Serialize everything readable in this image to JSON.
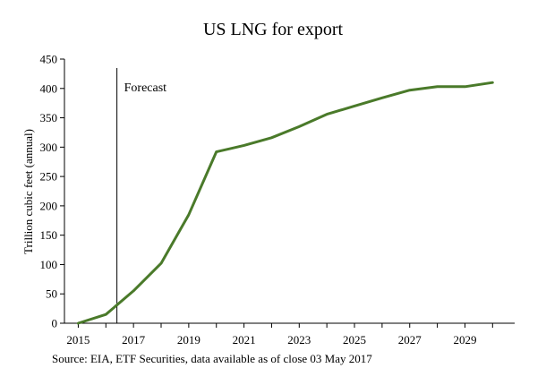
{
  "chart_data": {
    "type": "line",
    "title": "US LNG for export",
    "xlabel": "",
    "ylabel": "Trillion cubic feet (annual)",
    "x": [
      2015,
      2016,
      2017,
      2018,
      2019,
      2020,
      2021,
      2022,
      2023,
      2024,
      2025,
      2026,
      2027,
      2028,
      2029,
      2030
    ],
    "series": [
      {
        "values": [
          0,
          15,
          55,
          102,
          185,
          292,
          303,
          316,
          335,
          356,
          370,
          384,
          397,
          403,
          403,
          410
        ],
        "color": "#4a7a2a"
      }
    ],
    "xticks": [
      "2015",
      "2017",
      "2019",
      "2021",
      "2023",
      "2025",
      "2027",
      "2029"
    ],
    "xlim": [
      2014.5,
      2030.8
    ],
    "yticks": [
      "0",
      "50",
      "100",
      "150",
      "200",
      "250",
      "300",
      "350",
      "400",
      "450"
    ],
    "ylim": [
      0,
      450
    ],
    "grid": false,
    "legend": "none",
    "annotations": [
      {
        "text": "Forecast",
        "x": 2016.4
      }
    ],
    "source": "Source: EIA, ETF Securities, data available as of close 03 May 2017"
  }
}
